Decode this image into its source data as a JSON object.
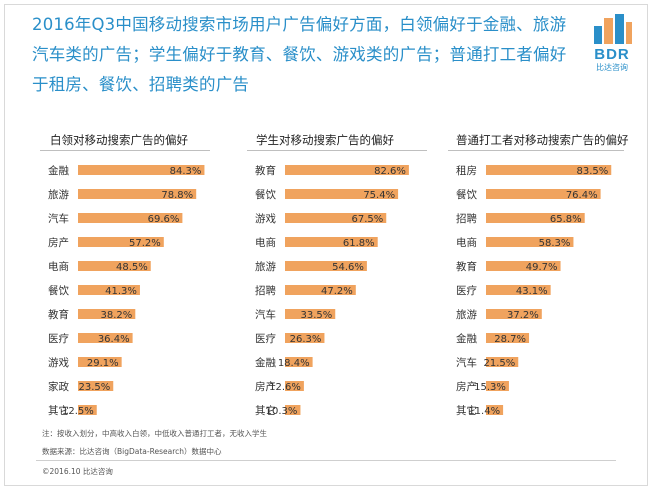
{
  "header": {
    "title_lines": [
      "2016年Q3中国移动搜索市场用户广告偏好方面，白领偏好于金融、旅游",
      "汽车类的广告；学生偏好于教育、餐饮、游戏类的广告；普通打工者偏好",
      "于租房、餐饮、招聘类的广告"
    ]
  },
  "logo": {
    "text": "BDR",
    "sub": "比达咨询",
    "color_main": "#2a8fc9",
    "color_accent": "#f0a35e"
  },
  "chart_data": [
    {
      "type": "bar",
      "orientation": "horizontal",
      "title": "白领对移动搜索广告的偏好",
      "categories": [
        "金融",
        "旅游",
        "汽车",
        "房产",
        "电商",
        "餐饮",
        "教育",
        "医疗",
        "游戏",
        "家政",
        "其它"
      ],
      "values": [
        84.3,
        78.8,
        69.6,
        57.2,
        48.5,
        41.3,
        38.2,
        36.4,
        29.1,
        23.5,
        12.5
      ],
      "value_suffix": "%",
      "xlim": [
        0,
        100
      ],
      "bar_color": "#f0a35e"
    },
    {
      "type": "bar",
      "orientation": "horizontal",
      "title": "学生对移动搜索广告的偏好",
      "categories": [
        "教育",
        "餐饮",
        "游戏",
        "电商",
        "旅游",
        "招聘",
        "汽车",
        "医疗",
        "金融",
        "房产",
        "其它"
      ],
      "values": [
        82.6,
        75.4,
        67.5,
        61.8,
        54.6,
        47.2,
        33.5,
        26.3,
        18.4,
        12.6,
        10.3
      ],
      "value_suffix": "%",
      "xlim": [
        0,
        100
      ],
      "bar_color": "#f0a35e"
    },
    {
      "type": "bar",
      "orientation": "horizontal",
      "title": "普通打工者对移动搜索广告的偏好",
      "categories": [
        "租房",
        "餐饮",
        "招聘",
        "电商",
        "教育",
        "医疗",
        "旅游",
        "金融",
        "汽车",
        "房产",
        "其它"
      ],
      "values": [
        83.5,
        76.4,
        65.8,
        58.3,
        49.7,
        43.1,
        37.2,
        28.7,
        21.5,
        15.3,
        11.4
      ],
      "value_suffix": "%",
      "xlim": [
        0,
        100
      ],
      "bar_color": "#f0a35e"
    }
  ],
  "footer": {
    "note": "注：按收入划分，中高收入白领，中低收入普通打工者，无收入学生",
    "source": "数据来源：比达咨询（BigData-Research）数据中心",
    "copyright": "©2016.10  比达咨询"
  }
}
